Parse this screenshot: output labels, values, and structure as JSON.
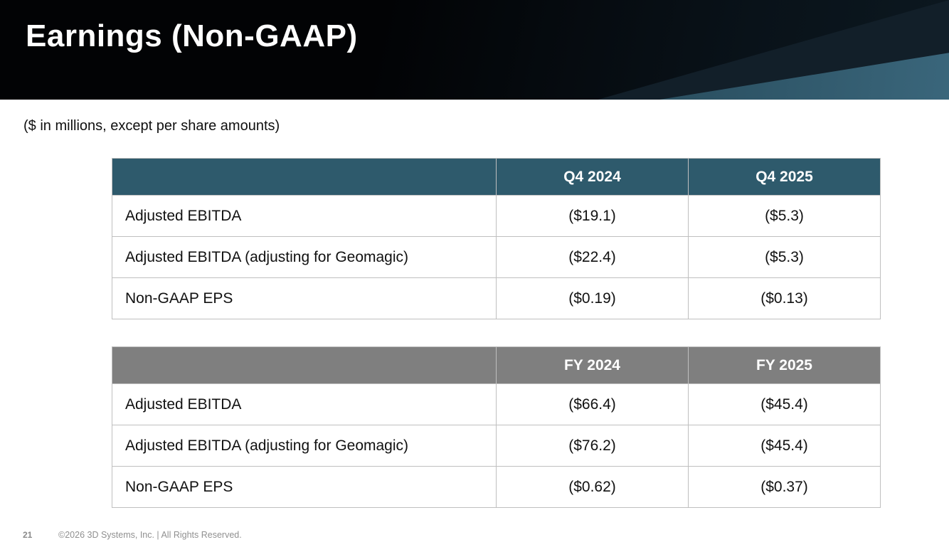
{
  "slide": {
    "title": "Earnings (Non-GAAP)",
    "subtitle": "($ in millions, except per share amounts)",
    "page_number": "21",
    "copyright": "©2026 3D Systems, Inc. | All Rights Reserved."
  },
  "colors": {
    "banner_bg": "#05090d",
    "banner_accent_wedge": "#35617600-#3a667b",
    "quarter_header_bg": "#2e5a6c",
    "year_header_bg": "#7f7f7f",
    "table_border": "#bfbfbf",
    "header_text": "#ffffff",
    "body_text": "#111111",
    "footer_text": "#8a8a8a"
  },
  "chart_data": [
    {
      "type": "table",
      "title": "Quarterly Non-GAAP results",
      "columns": [
        "",
        "Q4 2024",
        "Q4 2025"
      ],
      "rows": [
        {
          "label": "Adjusted EBITDA",
          "values": [
            "($19.1)",
            "($5.3)"
          ]
        },
        {
          "label": "Adjusted EBITDA (adjusting for Geomagic)",
          "values": [
            "($22.4)",
            "($5.3)"
          ]
        },
        {
          "label": "Non-GAAP EPS",
          "values": [
            "($0.19)",
            "($0.13)"
          ]
        }
      ]
    },
    {
      "type": "table",
      "title": "Full-year Non-GAAP results",
      "columns": [
        "",
        "FY 2024",
        "FY 2025"
      ],
      "rows": [
        {
          "label": "Adjusted EBITDA",
          "values": [
            "($66.4)",
            "($45.4)"
          ]
        },
        {
          "label": "Adjusted EBITDA (adjusting for Geomagic)",
          "values": [
            "($76.2)",
            "($45.4)"
          ]
        },
        {
          "label": "Non-GAAP EPS",
          "values": [
            "($0.62)",
            "($0.37)"
          ]
        }
      ]
    }
  ]
}
